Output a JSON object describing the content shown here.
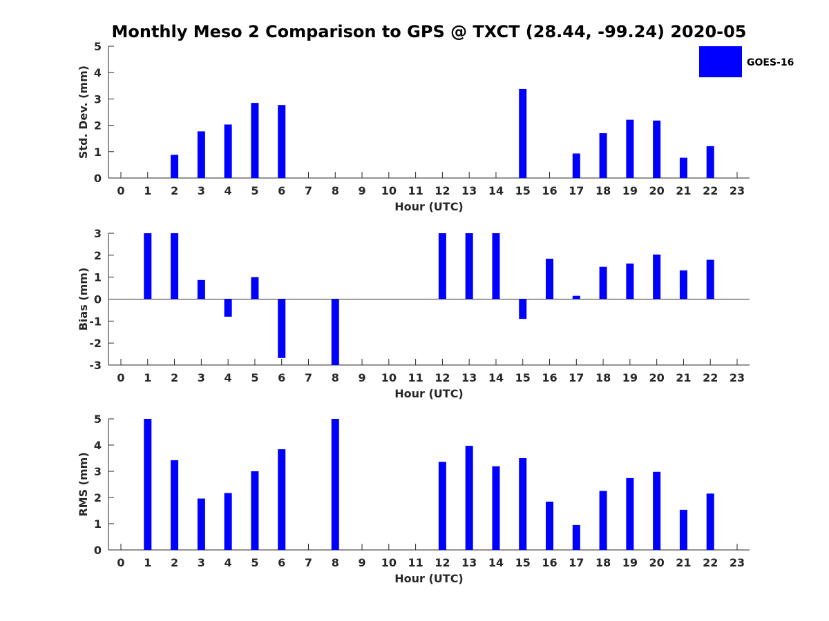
{
  "title": "Monthly Meso 2 Comparison to GPS @ TXCT (28.44, -99.24) 2020-05",
  "legend": {
    "label": "GOES-16",
    "color": "#0000ff"
  },
  "chart_data": [
    {
      "type": "bar",
      "ylabel": "Std. Dev. (mm)",
      "xlabel": "Hour (UTC)",
      "categories": [
        "0",
        "1",
        "2",
        "3",
        "4",
        "5",
        "6",
        "7",
        "8",
        "9",
        "10",
        "11",
        "12",
        "13",
        "14",
        "15",
        "16",
        "17",
        "18",
        "19",
        "20",
        "21",
        "22",
        "23"
      ],
      "ylim": [
        0,
        5
      ],
      "yticks": [
        "0",
        "1",
        "2",
        "3",
        "4",
        "5"
      ],
      "series": [
        {
          "name": "GOES-16",
          "color": "#0000ff",
          "values": [
            null,
            null,
            0.88,
            1.77,
            2.03,
            2.85,
            2.77,
            null,
            null,
            null,
            null,
            null,
            null,
            null,
            null,
            3.38,
            null,
            0.93,
            1.7,
            2.21,
            2.18,
            0.77,
            1.21,
            null
          ]
        }
      ]
    },
    {
      "type": "bar",
      "ylabel": "Bias (mm)",
      "xlabel": "Hour (UTC)",
      "categories": [
        "0",
        "1",
        "2",
        "3",
        "4",
        "5",
        "6",
        "7",
        "8",
        "9",
        "10",
        "11",
        "12",
        "13",
        "14",
        "15",
        "16",
        "17",
        "18",
        "19",
        "20",
        "21",
        "22",
        "23"
      ],
      "ylim": [
        -3,
        3
      ],
      "yticks": [
        "-3",
        "-2",
        "-1",
        "0",
        "1",
        "2",
        "3"
      ],
      "zero_line": true,
      "series": [
        {
          "name": "GOES-16",
          "color": "#0000ff",
          "values": [
            null,
            3.0,
            3.0,
            0.87,
            -0.8,
            1.0,
            -2.68,
            null,
            -3.0,
            null,
            null,
            null,
            3.0,
            3.0,
            3.0,
            -0.9,
            1.84,
            0.15,
            1.47,
            1.62,
            2.03,
            1.31,
            1.79,
            null
          ]
        }
      ]
    },
    {
      "type": "bar",
      "ylabel": "RMS (mm)",
      "xlabel": "Hour (UTC)",
      "categories": [
        "0",
        "1",
        "2",
        "3",
        "4",
        "5",
        "6",
        "7",
        "8",
        "9",
        "10",
        "11",
        "12",
        "13",
        "14",
        "15",
        "16",
        "17",
        "18",
        "19",
        "20",
        "21",
        "22",
        "23"
      ],
      "ylim": [
        0,
        5
      ],
      "yticks": [
        "0",
        "1",
        "2",
        "3",
        "4",
        "5"
      ],
      "series": [
        {
          "name": "GOES-16",
          "color": "#0000ff",
          "values": [
            null,
            5.0,
            3.42,
            1.96,
            2.17,
            3.0,
            3.84,
            null,
            5.0,
            null,
            null,
            null,
            3.36,
            3.97,
            3.19,
            3.5,
            1.84,
            0.95,
            2.25,
            2.74,
            2.98,
            1.53,
            2.15,
            null
          ]
        }
      ]
    }
  ]
}
